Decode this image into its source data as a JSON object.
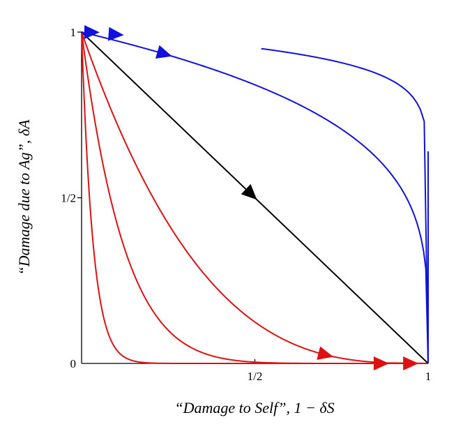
{
  "chart_data": {
    "type": "line",
    "title": "",
    "xlabel": "“Damage to Self”, 1 − δS",
    "ylabel": "“Damage due to Ag”, δA",
    "xlim": [
      0,
      1
    ],
    "ylim": [
      0,
      1
    ],
    "x_ticks": [
      {
        "value": 0.5,
        "label": "1/2"
      },
      {
        "value": 1,
        "label": "1"
      }
    ],
    "y_ticks": [
      {
        "value": 0,
        "label": "0"
      },
      {
        "value": 0.5,
        "label": "1/2"
      },
      {
        "value": 1,
        "label": "1"
      }
    ],
    "grid": false,
    "legend": "none",
    "series": [
      {
        "color": "#000000",
        "k": 1,
        "arrow_at": 0.49
      },
      {
        "color": "#dd1111",
        "k": 3,
        "arrow_at": 0.705
      },
      {
        "color": "#dd1111",
        "k": 8,
        "arrow_at": 0.865
      },
      {
        "color": "#dd1111",
        "k": 30,
        "arrow_at": 0.95
      },
      {
        "color": "#1111dd",
        "k": 0.25,
        "arrow_at": 0.24
      },
      {
        "color": "#1111dd",
        "k": 0.07,
        "y_start": 0.95,
        "arrow_at": 0.1
      },
      {
        "color": "#1111dd",
        "k": 0.015,
        "y_start": 0.64,
        "arrow_at": 0.03
      }
    ]
  }
}
